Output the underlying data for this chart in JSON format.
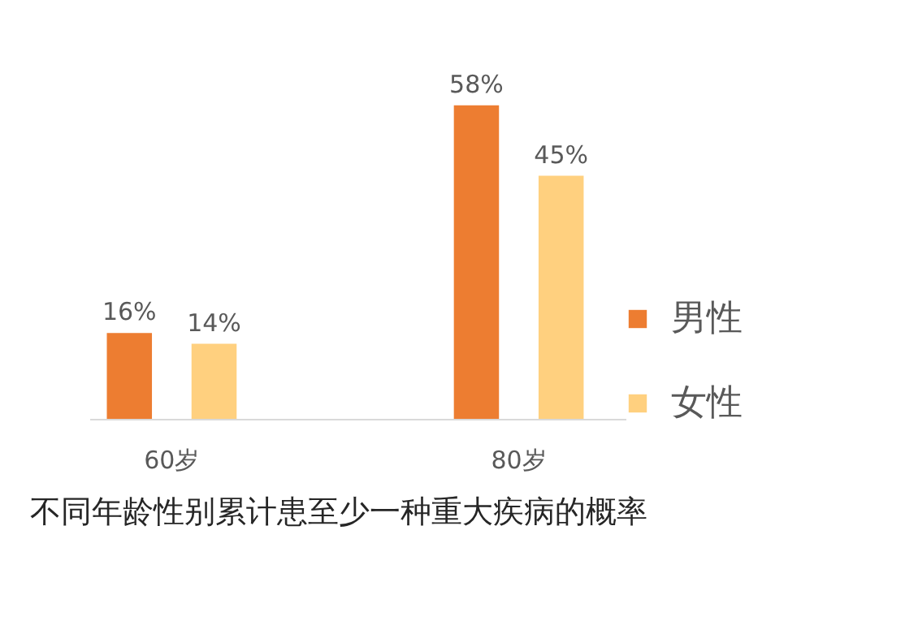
{
  "chart_data": {
    "type": "bar",
    "categories": [
      "60岁",
      "80岁"
    ],
    "series": [
      {
        "name": "男性",
        "color": "#ed7d31",
        "values": [
          16,
          58
        ],
        "value_labels": [
          "16%",
          "58%"
        ]
      },
      {
        "name": "女性",
        "color": "#ffd07f",
        "values": [
          14,
          45
        ],
        "value_labels": [
          "14%",
          "45%"
        ]
      }
    ],
    "legend": "right",
    "annotations": [
      "不同年龄性别累计患至少一种重大疾病的概率"
    ]
  }
}
